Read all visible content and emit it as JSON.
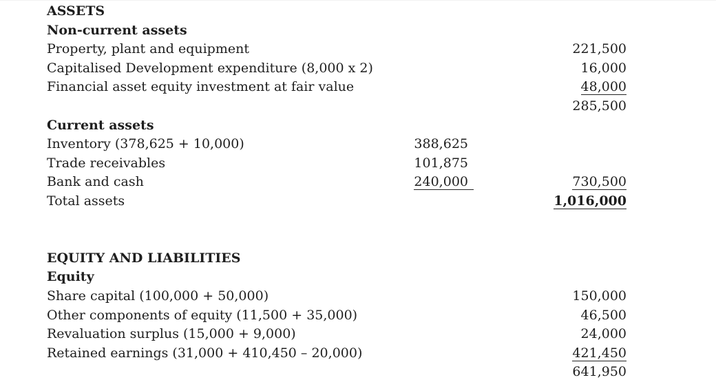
{
  "document": {
    "type": "statement-of-financial-position",
    "columns": {
      "label_column": "line item",
      "col1": "sub-total figures",
      "col2": "total figures"
    },
    "rows": [
      {
        "label": "ASSETS",
        "bold": true
      },
      {
        "label": "Non-current assets",
        "bold": true
      },
      {
        "label": "Property, plant and equipment",
        "c2": "221,500"
      },
      {
        "label": "Capitalised Development expenditure (8,000 x 2)",
        "c2": "16,000"
      },
      {
        "label": "Financial asset equity investment at fair value",
        "c2": "48,000",
        "c2_underline": true
      },
      {
        "label": "",
        "c2": "285,500"
      },
      {
        "label": "Current assets",
        "bold": true
      },
      {
        "label": "Inventory (378,625 + 10,000)",
        "c1": "388,625"
      },
      {
        "label": "Trade receivables",
        "c1": "101,875"
      },
      {
        "label": "Bank and cash",
        "c1": "240,000",
        "c1_underline": true,
        "c1_trail": true,
        "c2": "730,500",
        "c2_underline": true
      },
      {
        "label": "Total assets",
        "c2": "1,016,000",
        "c2_underline": true,
        "c2_bold": true
      },
      {
        "label": "",
        "blank": true
      },
      {
        "label": "",
        "blank": true
      },
      {
        "label": "EQUITY AND LIABILITIES",
        "bold": true
      },
      {
        "label": "Equity",
        "bold": true
      },
      {
        "label": "Share capital (100,000 + 50,000)",
        "c2": "150,000"
      },
      {
        "label": "Other components of equity (11,500 + 35,000)",
        "c2": "46,500"
      },
      {
        "label": "Revaluation surplus (15,000 + 9,000)",
        "c2": "24,000"
      },
      {
        "label": "Retained earnings (31,000 + 410,450 – 20,000)",
        "c2": "421,450",
        "c2_underline": true
      },
      {
        "label": "",
        "c2": "641,950"
      }
    ]
  }
}
